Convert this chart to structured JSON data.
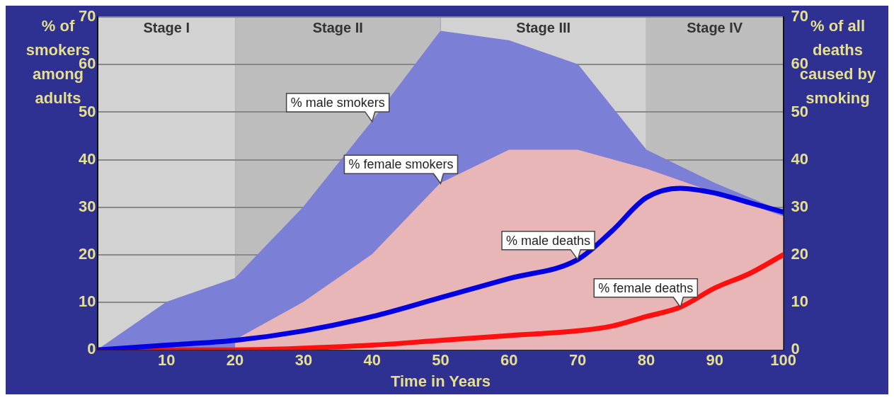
{
  "chart_data": {
    "type": "area",
    "xlabel": "Time in Years",
    "ylabel": "% of smokers among adults",
    "y2label": "% of all deaths caused by smoking",
    "x": [
      0,
      10,
      20,
      30,
      40,
      50,
      60,
      70,
      80,
      90,
      100
    ],
    "series": [
      {
        "color": "#7b7fd6",
        "values": [
          0,
          10,
          15,
          30,
          48,
          67,
          65,
          60,
          42,
          35,
          29
        ]
      },
      {
        "color": "#e8b6b6",
        "x": [
          20,
          30,
          40,
          50,
          60,
          70,
          80,
          90,
          100
        ],
        "values": [
          2,
          10,
          20,
          35,
          42,
          42,
          38,
          33,
          28
        ]
      },
      {
        "type": "line",
        "axis": "y2",
        "color": "#0000e0",
        "x": [
          0,
          10,
          20,
          30,
          40,
          50,
          60,
          70,
          75,
          80,
          85,
          90,
          95,
          100
        ],
        "values": [
          0,
          1,
          2,
          4,
          7,
          11,
          15,
          19,
          25,
          32,
          34,
          33,
          31,
          29
        ]
      },
      {
        "type": "line",
        "axis": "y2",
        "color": "#ff1010",
        "x": [
          0,
          20,
          40,
          50,
          60,
          70,
          75,
          80,
          85,
          90,
          95,
          100
        ],
        "values": [
          0,
          0,
          1,
          2,
          3,
          4,
          5,
          7,
          9,
          13,
          16,
          20
        ]
      }
    ],
    "xlim": [
      0,
      100
    ],
    "xticks": [
      10,
      20,
      30,
      40,
      50,
      60,
      70,
      80,
      90,
      100
    ],
    "ylim": [
      0,
      70
    ],
    "yticks": [
      0,
      10,
      20,
      30,
      40,
      50,
      60,
      70
    ],
    "y2lim": [
      0,
      70
    ],
    "y2ticks": [
      0,
      10,
      20,
      30,
      40,
      50,
      60,
      70
    ],
    "grid": "y",
    "bands": [
      {
        "axis": "x",
        "from": 0,
        "to": 20,
        "label": "Stage I",
        "color": "#d2d2d2"
      },
      {
        "axis": "x",
        "from": 20,
        "to": 50,
        "label": "Stage II",
        "color": "#bdbdbd"
      },
      {
        "axis": "x",
        "from": 50,
        "to": 80,
        "label": "Stage III",
        "color": "#d2d2d2"
      },
      {
        "axis": "x",
        "from": 80,
        "to": 100,
        "label": "Stage IV",
        "color": "#bdbdbd"
      }
    ],
    "annotations": [
      {
        "text": "% male smokers",
        "x": 40,
        "y": 48
      },
      {
        "text": "% female smokers",
        "x": 50,
        "y": 35
      },
      {
        "text": "% male deaths",
        "x": 70,
        "y": 19
      },
      {
        "text": "% female deaths",
        "x": 85,
        "y": 9
      }
    ]
  }
}
